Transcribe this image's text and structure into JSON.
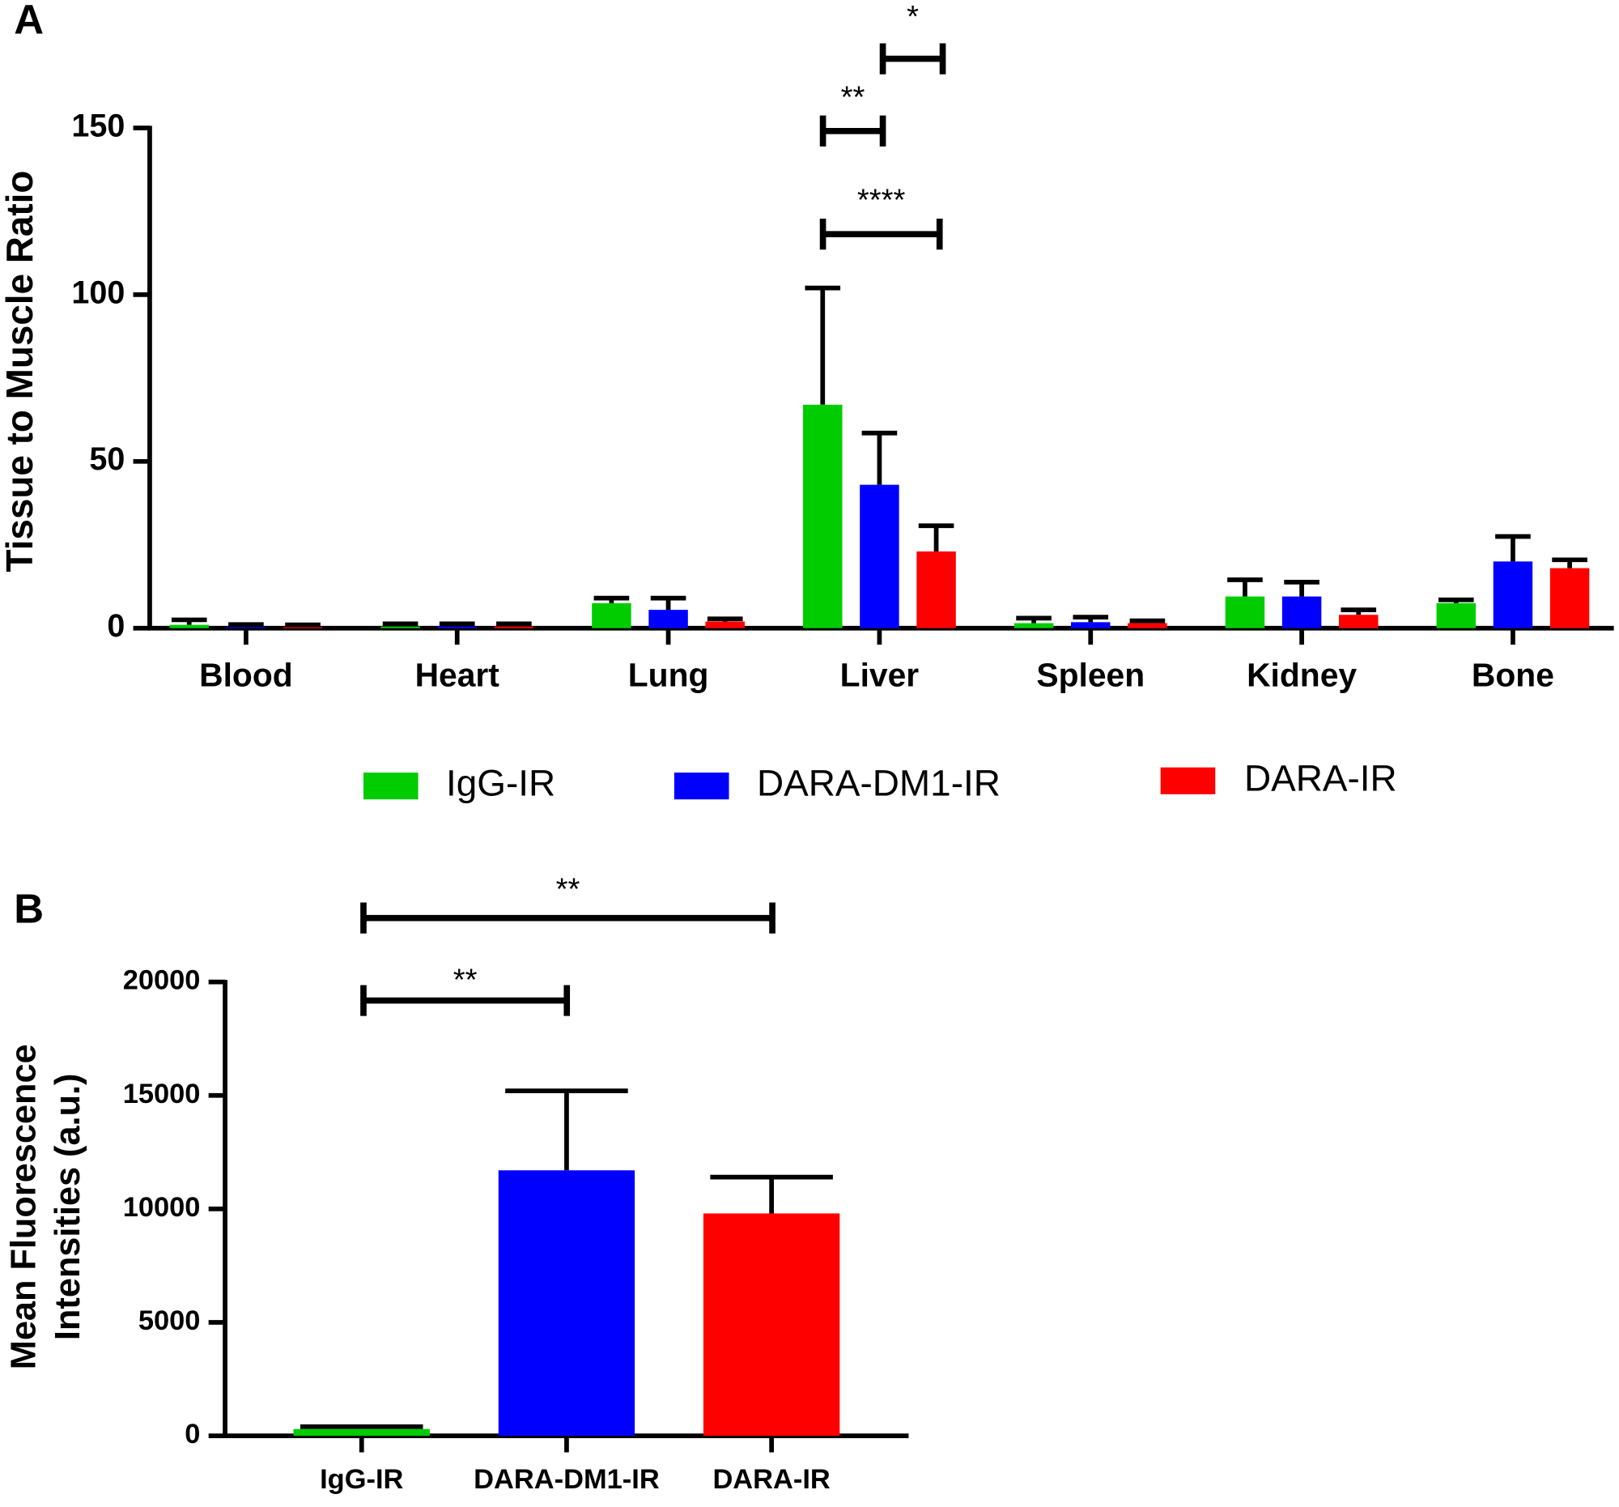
{
  "chart_data": [
    {
      "type": "bar",
      "panel": "A",
      "ylabel": [
        "Tissue to Muscle Ratio"
      ],
      "categories": [
        "Blood",
        "Heart",
        "Lung",
        "Liver",
        "Spleen",
        "Kidney",
        "Bone"
      ],
      "series": [
        {
          "name": "IgG-IR",
          "color": "#00cc00",
          "values": [
            1,
            0.5,
            7.5,
            67,
            1.5,
            9.5,
            7.5
          ],
          "errors": [
            1.5,
            0.8,
            1.5,
            35,
            1.5,
            5,
            1
          ]
        },
        {
          "name": "DARA-DM1-IR",
          "color": "#0000ff",
          "values": [
            0.3,
            0.5,
            5.5,
            43,
            1.8,
            9.5,
            20
          ],
          "errors": [
            0.8,
            0.8,
            3.5,
            15.5,
            1.5,
            4.3,
            7.5
          ]
        },
        {
          "name": "DARA-IR",
          "color": "#ff0000",
          "values": [
            0.3,
            0.5,
            2,
            23,
            1.5,
            4,
            18
          ],
          "errors": [
            0.7,
            0.8,
            0.8,
            7.7,
            0.7,
            1.5,
            2.5
          ]
        }
      ],
      "ylim": [
        0,
        150
      ],
      "yticks": [
        0,
        50,
        100,
        150
      ],
      "grid": false,
      "legend": "bottom",
      "annotations": [
        "****",
        "**",
        "*"
      ]
    },
    {
      "type": "bar",
      "panel": "B",
      "ylabel": [
        "Mean Fluorescence",
        "Intensities (a.u.)"
      ],
      "categories": [
        "IgG-IR",
        "DARA-DM1-IR",
        "DARA-IR"
      ],
      "values": [
        300,
        11700,
        9800
      ],
      "errors": [
        100,
        3500,
        1600
      ],
      "colors": [
        "#00cc00",
        "#0000ff",
        "#ff0000"
      ],
      "ylim": [
        0,
        20000
      ],
      "yticks": [
        0,
        5000,
        10000,
        15000,
        20000
      ],
      "grid": false,
      "annotations": [
        "**",
        "**"
      ]
    }
  ]
}
